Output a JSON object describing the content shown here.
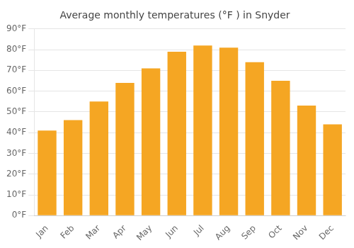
{
  "chart_data": {
    "type": "bar",
    "title": "Average monthly temperatures (°F ) in Snyder",
    "categories": [
      "Jan",
      "Feb",
      "Mar",
      "Apr",
      "May",
      "Jun",
      "Jul",
      "Aug",
      "Sep",
      "Oct",
      "Nov",
      "Dec"
    ],
    "values": [
      41,
      46,
      55,
      64,
      71,
      79,
      82,
      81,
      74,
      65,
      53,
      44
    ],
    "color": "#F5A623",
    "ylim": [
      0,
      90
    ],
    "yticks": [
      {
        "value": 0,
        "label": "0°F"
      },
      {
        "value": 10,
        "label": "10°F"
      },
      {
        "value": 20,
        "label": "20°F"
      },
      {
        "value": 30,
        "label": "30°F"
      },
      {
        "value": 40,
        "label": "40°F"
      },
      {
        "value": 50,
        "label": "50°F"
      },
      {
        "value": 60,
        "label": "60°F"
      },
      {
        "value": 70,
        "label": "70°F"
      },
      {
        "value": 80,
        "label": "80°F"
      },
      {
        "value": 90,
        "label": "90°F"
      }
    ],
    "grid": true
  }
}
